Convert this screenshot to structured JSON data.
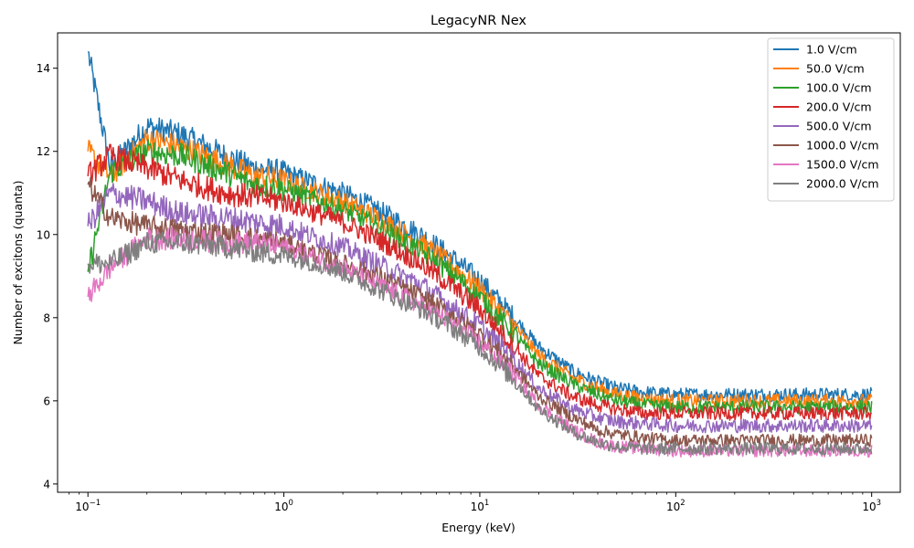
{
  "chart_data": {
    "type": "line",
    "title": "LegacyNR Nex",
    "xlabel": "Energy (keV)",
    "ylabel": "Number of excitons (quanta)",
    "xscale": "log",
    "xlim": [
      0.07,
      1400
    ],
    "ylim": [
      3.8,
      14.85
    ],
    "x_ticks": [
      {
        "value": 0.1,
        "base": "10",
        "exp": "−1"
      },
      {
        "value": 1,
        "base": "10",
        "exp": "0"
      },
      {
        "value": 10,
        "base": "10",
        "exp": "1"
      },
      {
        "value": 100,
        "base": "10",
        "exp": "2"
      },
      {
        "value": 1000,
        "base": "10",
        "exp": "3"
      }
    ],
    "y_ticks": [
      4,
      6,
      8,
      10,
      12,
      14
    ],
    "grid": false,
    "legend_position": "top-right",
    "x": [
      0.1,
      0.13,
      0.2,
      0.3,
      0.5,
      0.7,
      1,
      1.5,
      2,
      3,
      5,
      7,
      10,
      15,
      20,
      30,
      40,
      50,
      70,
      100,
      200,
      500,
      1000
    ],
    "series": [
      {
        "name": "1.0 V/cm",
        "color": "#1f77b4",
        "noise": 0.55,
        "values": [
          14.4,
          11.6,
          12.6,
          12.4,
          11.9,
          11.6,
          11.5,
          11.2,
          11.0,
          10.6,
          10.0,
          9.5,
          8.9,
          8.0,
          7.3,
          6.7,
          6.45,
          6.3,
          6.2,
          6.15,
          6.15,
          6.15,
          6.15
        ]
      },
      {
        "name": "50.0 V/cm",
        "color": "#ff7f0e",
        "noise": 0.55,
        "values": [
          12.0,
          11.4,
          12.3,
          12.1,
          11.7,
          11.4,
          11.3,
          11.0,
          10.8,
          10.4,
          9.8,
          9.3,
          8.7,
          7.8,
          7.1,
          6.55,
          6.3,
          6.15,
          6.05,
          6.0,
          6.0,
          6.0,
          6.0
        ]
      },
      {
        "name": "100.0 V/cm",
        "color": "#2ca02c",
        "noise": 0.55,
        "values": [
          9.1,
          11.5,
          12.0,
          11.9,
          11.5,
          11.2,
          11.1,
          10.8,
          10.6,
          10.2,
          9.6,
          9.1,
          8.5,
          7.6,
          6.9,
          6.4,
          6.15,
          6.0,
          5.9,
          5.85,
          5.85,
          5.85,
          5.85
        ]
      },
      {
        "name": "200.0 V/cm",
        "color": "#d62728",
        "noise": 0.55,
        "values": [
          11.4,
          11.9,
          11.6,
          11.3,
          11.0,
          10.9,
          10.8,
          10.5,
          10.3,
          9.9,
          9.3,
          8.8,
          8.2,
          7.3,
          6.6,
          6.1,
          5.9,
          5.8,
          5.7,
          5.7,
          5.7,
          5.7,
          5.7
        ]
      },
      {
        "name": "500.0 V/cm",
        "color": "#9467bd",
        "noise": 0.55,
        "values": [
          10.2,
          11.0,
          10.8,
          10.5,
          10.4,
          10.3,
          10.2,
          9.9,
          9.7,
          9.3,
          8.8,
          8.3,
          7.8,
          7.0,
          6.3,
          5.8,
          5.6,
          5.5,
          5.45,
          5.4,
          5.4,
          5.4,
          5.4
        ]
      },
      {
        "name": "1000.0 V/cm",
        "color": "#8c564b",
        "noise": 0.5,
        "values": [
          11.2,
          10.4,
          10.2,
          10.1,
          10.0,
          9.9,
          9.8,
          9.5,
          9.3,
          9.0,
          8.5,
          8.1,
          7.6,
          6.8,
          6.1,
          5.6,
          5.3,
          5.2,
          5.1,
          5.05,
          5.05,
          5.05,
          5.05
        ]
      },
      {
        "name": "1500.0 V/cm",
        "color": "#e377c2",
        "noise": 0.5,
        "values": [
          8.5,
          9.2,
          9.9,
          9.9,
          9.8,
          9.8,
          9.7,
          9.4,
          9.2,
          8.8,
          8.3,
          7.9,
          7.4,
          6.6,
          5.9,
          5.3,
          5.0,
          4.9,
          4.85,
          4.8,
          4.8,
          4.8,
          4.8
        ]
      },
      {
        "name": "2000.0 V/cm",
        "color": "#7f7f7f",
        "noise": 0.5,
        "values": [
          9.3,
          9.3,
          9.8,
          9.8,
          9.7,
          9.6,
          9.5,
          9.3,
          9.1,
          8.7,
          8.2,
          7.8,
          7.3,
          6.5,
          5.8,
          5.25,
          5.0,
          4.9,
          4.85,
          4.85,
          4.85,
          4.85,
          4.85
        ]
      }
    ]
  }
}
